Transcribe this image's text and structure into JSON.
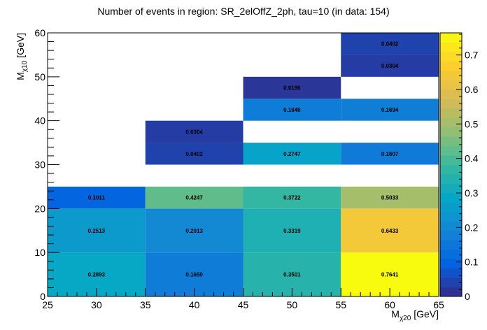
{
  "chart_data": {
    "type": "heatmap",
    "title": "Number of events in region: SR_2elOffZ_2ph, tau=10 (in data: 154)",
    "xlabel_main": "M",
    "xlabel_sub": "χ20",
    "xlabel_unit": " [GeV]",
    "ylabel_main": "M",
    "ylabel_sub": "χ10",
    "ylabel_unit": " [GeV]",
    "xlim": [
      25,
      65
    ],
    "ylim": [
      0,
      60
    ],
    "zlim": [
      0,
      0.7641
    ],
    "x_ticks": [
      "25",
      "30",
      "35",
      "40",
      "45",
      "50",
      "55",
      "60",
      "65"
    ],
    "y_ticks": [
      "0",
      "10",
      "20",
      "30",
      "40",
      "50",
      "60"
    ],
    "z_ticks": [
      "0",
      "0.1",
      "0.2",
      "0.3",
      "0.4",
      "0.5",
      "0.6",
      "0.7"
    ],
    "cells": [
      {
        "x0": 25,
        "x1": 35,
        "y0": 0,
        "y1": 10,
        "value": 0.2893,
        "label": "0.2893"
      },
      {
        "x0": 35,
        "x1": 45,
        "y0": 0,
        "y1": 10,
        "value": 0.165,
        "label": "0.1650"
      },
      {
        "x0": 45,
        "x1": 55,
        "y0": 0,
        "y1": 10,
        "value": 0.3501,
        "label": "0.3501"
      },
      {
        "x0": 55,
        "x1": 65,
        "y0": 0,
        "y1": 10,
        "value": 0.7641,
        "label": "0.7641"
      },
      {
        "x0": 25,
        "x1": 35,
        "y0": 10,
        "y1": 20,
        "value": 0.2513,
        "label": "0.2513"
      },
      {
        "x0": 35,
        "x1": 45,
        "y0": 10,
        "y1": 20,
        "value": 0.2013,
        "label": "0.2013"
      },
      {
        "x0": 45,
        "x1": 55,
        "y0": 10,
        "y1": 20,
        "value": 0.3319,
        "label": "0.3319"
      },
      {
        "x0": 55,
        "x1": 65,
        "y0": 10,
        "y1": 20,
        "value": 0.6433,
        "label": "0.6433"
      },
      {
        "x0": 25,
        "x1": 35,
        "y0": 20,
        "y1": 25,
        "value": 0.1011,
        "label": "0.1011"
      },
      {
        "x0": 35,
        "x1": 45,
        "y0": 20,
        "y1": 25,
        "value": 0.4247,
        "label": "0.4247"
      },
      {
        "x0": 45,
        "x1": 55,
        "y0": 20,
        "y1": 25,
        "value": 0.3722,
        "label": "0.3722"
      },
      {
        "x0": 55,
        "x1": 65,
        "y0": 20,
        "y1": 25,
        "value": 0.5033,
        "label": "0.5033"
      },
      {
        "x0": 35,
        "x1": 45,
        "y0": 30,
        "y1": 35,
        "value": 0.0402,
        "label": "0.0402"
      },
      {
        "x0": 45,
        "x1": 55,
        "y0": 30,
        "y1": 35,
        "value": 0.2747,
        "label": "0.2747"
      },
      {
        "x0": 55,
        "x1": 65,
        "y0": 30,
        "y1": 35,
        "value": 0.1607,
        "label": "0.1607"
      },
      {
        "x0": 35,
        "x1": 45,
        "y0": 35,
        "y1": 40,
        "value": 0.0304,
        "label": "0.0304"
      },
      {
        "x0": 45,
        "x1": 55,
        "y0": 40,
        "y1": 45,
        "value": 0.1646,
        "label": "0.1646"
      },
      {
        "x0": 55,
        "x1": 65,
        "y0": 40,
        "y1": 45,
        "value": 0.1694,
        "label": "0.1694"
      },
      {
        "x0": 45,
        "x1": 55,
        "y0": 45,
        "y1": 50,
        "value": 0.0196,
        "label": "0.0196"
      },
      {
        "x0": 55,
        "x1": 65,
        "y0": 50,
        "y1": 55,
        "value": 0.0304,
        "label": "0.0304"
      },
      {
        "x0": 55,
        "x1": 65,
        "y0": 55,
        "y1": 60,
        "value": 0.0402,
        "label": "0.0402"
      }
    ],
    "colormap": "ROOT kBird",
    "colormap_stops": [
      "#352a87",
      "#0363e1",
      "#1485d4",
      "#06a7c6",
      "#38b99e",
      "#92bf73",
      "#d9ba56",
      "#fcce2e",
      "#f9fb0e"
    ],
    "grid": false
  }
}
